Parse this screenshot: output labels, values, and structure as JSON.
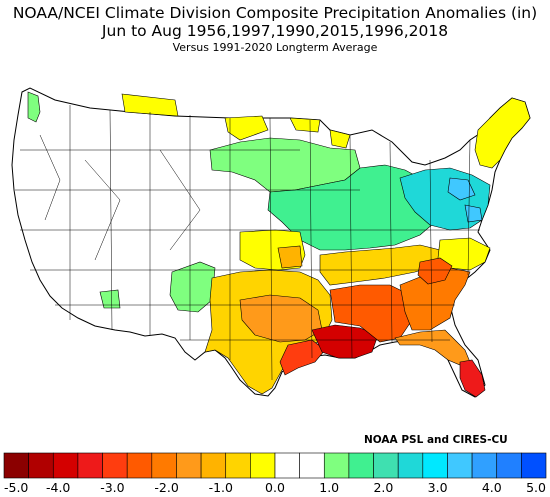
{
  "title_line1": "NOAA/NCEI Climate Division Composite Precipitation Anomalies (in)",
  "title_line2": "Jun to Aug  1956,1997,1990,2015,1996,2018",
  "title_line3": "Versus 1991-2020 Longterm Average",
  "credit": "NOAA PSL and CIRES-CU",
  "legend": {
    "colors": [
      "#8b0000",
      "#b00000",
      "#d40000",
      "#ee1a1a",
      "#ff3d0f",
      "#ff5a00",
      "#ff7a00",
      "#ff9a1a",
      "#ffb300",
      "#ffd400",
      "#ffff00",
      "#ffffff",
      "#ffffff",
      "#7fff7f",
      "#40f090",
      "#3fe0b0",
      "#1fd8d8",
      "#00e8ff",
      "#40c8ff",
      "#30a0ff",
      "#2080ff",
      "#0050ff"
    ],
    "tick_labels": [
      "-5.0",
      "-4.0",
      "-3.0",
      "-2.0",
      "-1.0",
      "0.0",
      "1.0",
      "2.0",
      "3.0",
      "4.0",
      "5.0"
    ]
  },
  "map_regions": [
    {
      "name": "washington-west",
      "color": "#7fff7f"
    },
    {
      "name": "north-dakota-central",
      "color": "#ffff00"
    },
    {
      "name": "minnesota-north",
      "color": "#ffff00"
    },
    {
      "name": "wisconsin-north",
      "color": "#ffff00"
    },
    {
      "name": "upper-midwest-iowa",
      "color": "#7fff7f"
    },
    {
      "name": "ohio-valley-pennsylvania",
      "color": "#40f090"
    },
    {
      "name": "pennsylvania-new-york",
      "color": "#1fd8d8"
    },
    {
      "name": "new-york-central",
      "color": "#40c8ff"
    },
    {
      "name": "new-england",
      "color": "#ffff00"
    },
    {
      "name": "kansas-oklahoma",
      "color": "#ffff00"
    },
    {
      "name": "oklahoma-east",
      "color": "#ffb300"
    },
    {
      "name": "new-mexico-colorado",
      "color": "#7fff7f"
    },
    {
      "name": "utah-south",
      "color": "#7fff7f"
    },
    {
      "name": "texas",
      "color": "#ffd400"
    },
    {
      "name": "texas-east",
      "color": "#ff9a1a"
    },
    {
      "name": "texas-gulf-coast",
      "color": "#ff3d0f"
    },
    {
      "name": "louisiana",
      "color": "#d40000"
    },
    {
      "name": "mississippi-alabama",
      "color": "#ff5a00"
    },
    {
      "name": "georgia-carolinas",
      "color": "#ff7a00"
    },
    {
      "name": "carolinas-piedmont",
      "color": "#ff5a00"
    },
    {
      "name": "florida",
      "color": "#ff9a1a"
    },
    {
      "name": "florida-south",
      "color": "#ee1a1a"
    },
    {
      "name": "tennessee-kentucky",
      "color": "#ffd400"
    },
    {
      "name": "virginia-north-carolina",
      "color": "#ffff00"
    }
  ]
}
